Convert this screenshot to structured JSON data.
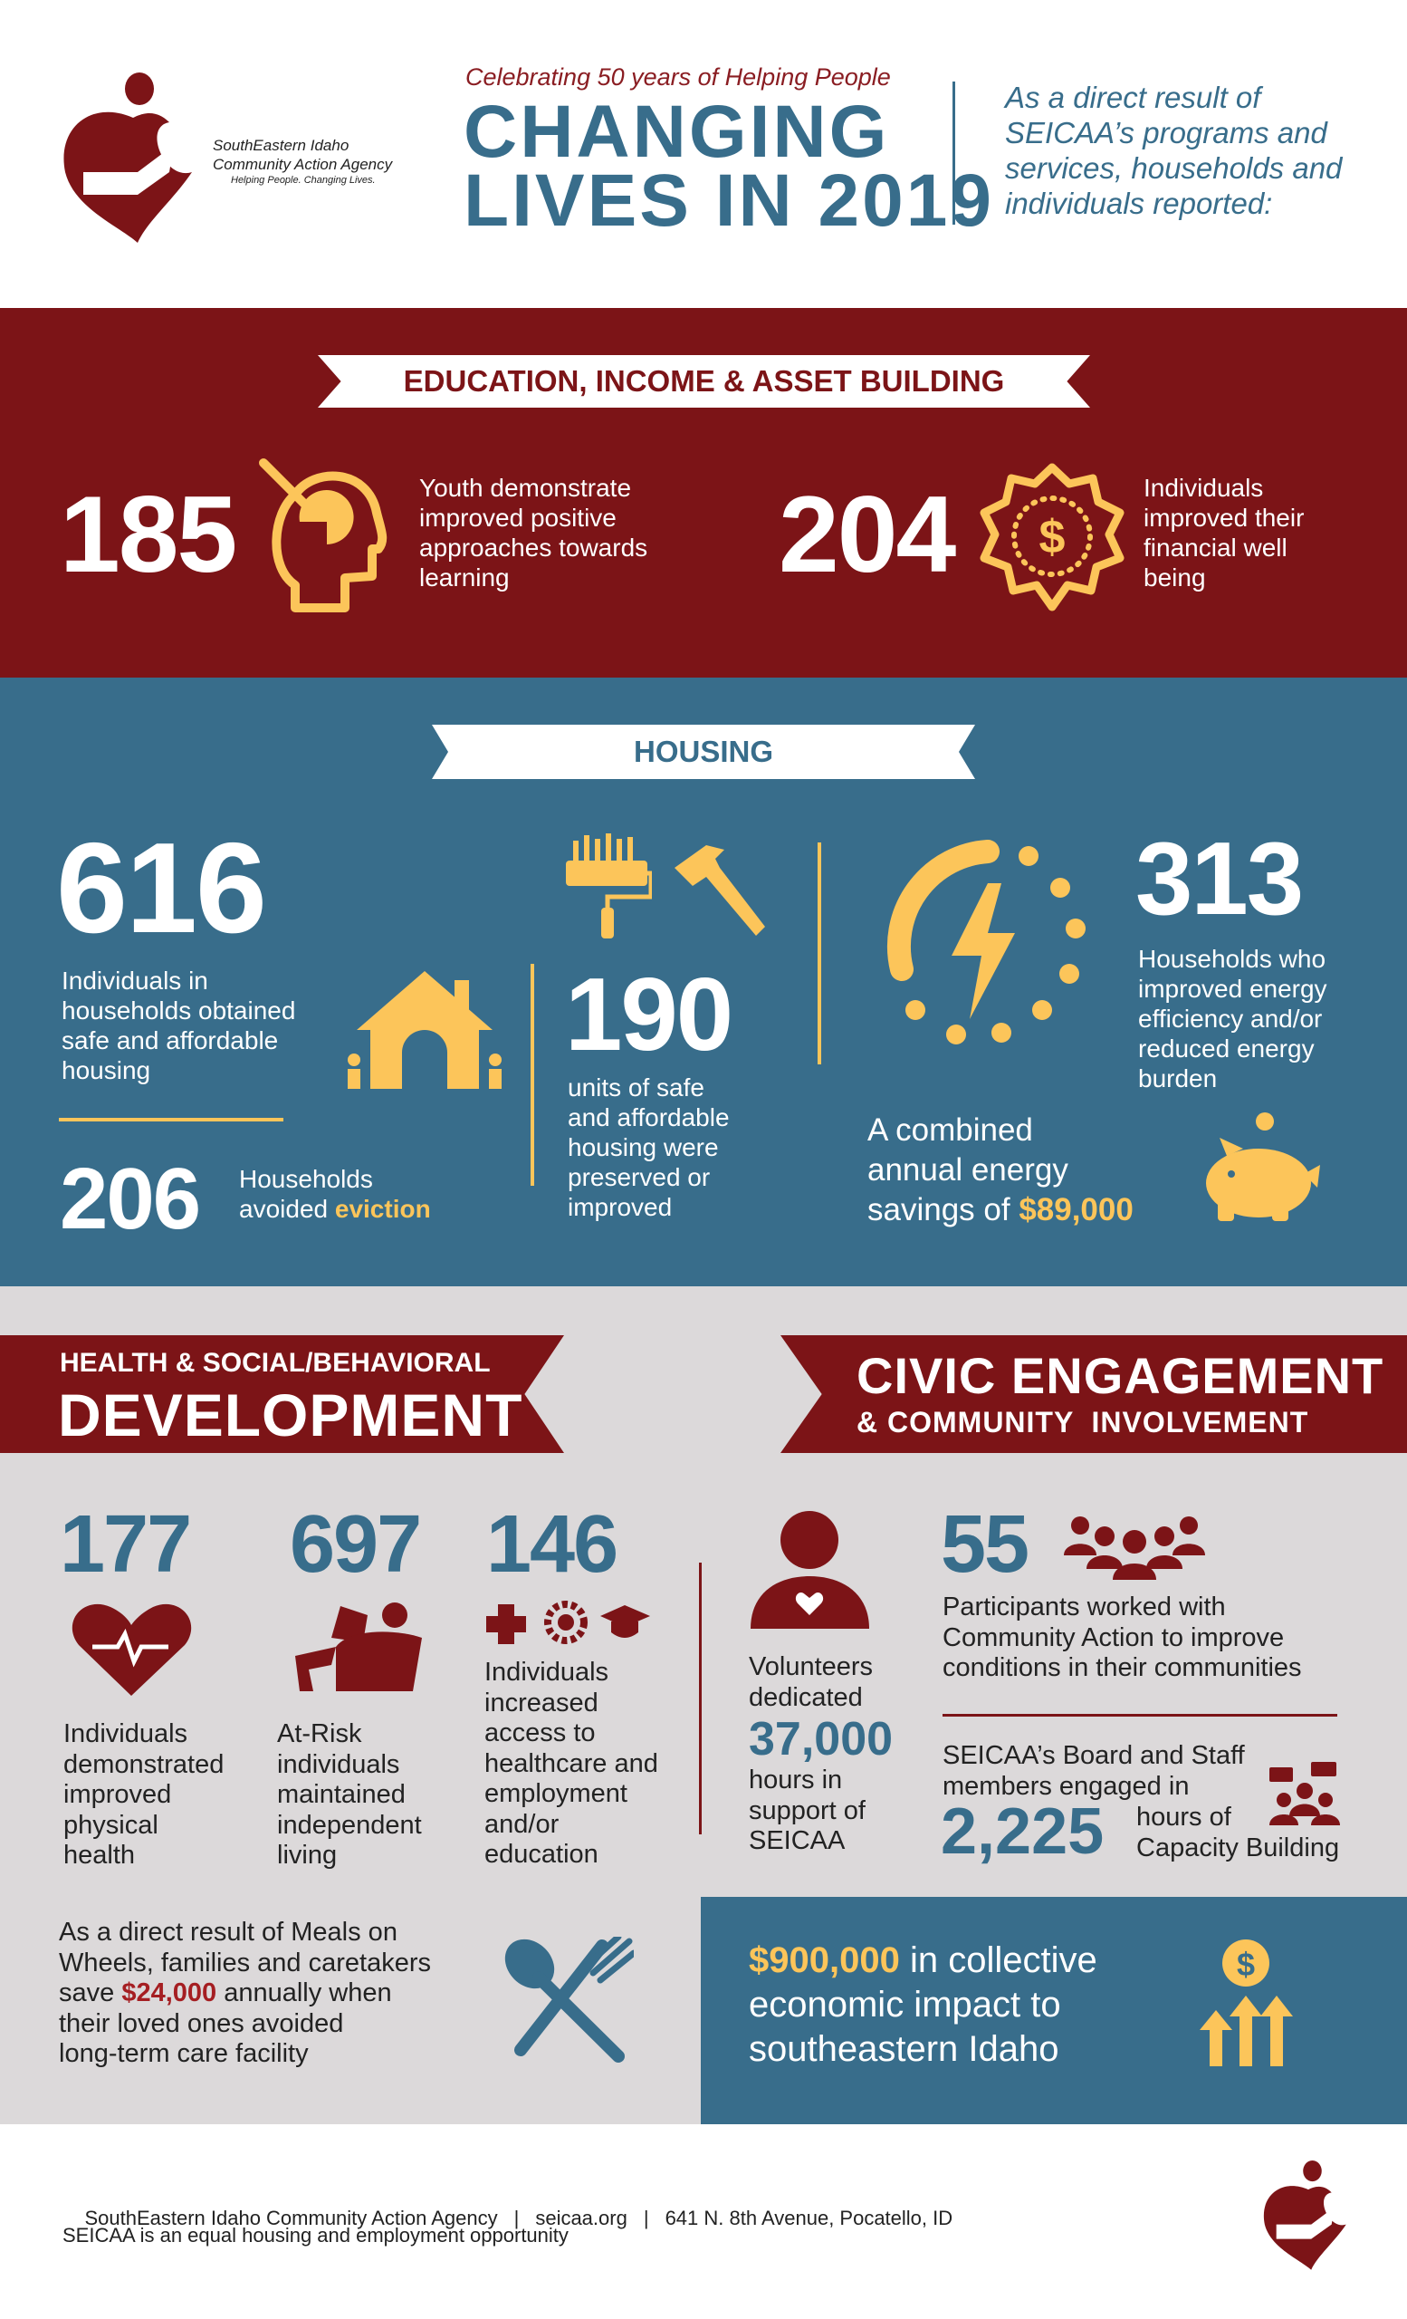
{
  "header": {
    "org_line1": "SouthEastern Idaho",
    "org_line2": "Community Action Agency",
    "org_tagline": "Helping People. Changing Lives.",
    "kicker": "Celebrating 50 years of Helping People",
    "title_line1": "CHANGING",
    "title_line2": "LIVES IN 2019",
    "intro": [
      "As a direct result of",
      "SEICAA’s programs and",
      "services, households and",
      "individuals reported:"
    ]
  },
  "education": {
    "banner": "EDUCATION, INCOME & ASSET BUILDING",
    "stat1": {
      "value": "185",
      "text": [
        "Youth demonstrate",
        "improved positive",
        "approaches towards",
        "learning"
      ],
      "icon": "head-learning-icon"
    },
    "stat2": {
      "value": "204",
      "text": [
        "Individuals",
        "improved their",
        "financial well",
        "being"
      ],
      "icon": "dollar-badge-icon"
    }
  },
  "housing": {
    "banner": "HOUSING",
    "stat616": {
      "value": "616",
      "text": [
        "Individuals in",
        "households obtained",
        "safe and affordable",
        "housing"
      ]
    },
    "stat206": {
      "value": "206",
      "text_a": "Households",
      "text_b": "avoided ",
      "highlight": "eviction"
    },
    "stat190": {
      "value": "190",
      "text": [
        "units of safe",
        "and affordable",
        "housing were",
        "preserved or",
        "improved"
      ]
    },
    "stat313": {
      "value": "313",
      "text": [
        "Households who",
        "improved energy",
        "efficiency and/or",
        "reduced energy",
        "burden"
      ]
    },
    "savings": {
      "line1": "A combined",
      "line2": "annual energy",
      "line3": "savings of ",
      "amount": "$89,000"
    }
  },
  "health": {
    "banner_small": "HEALTH & SOCIAL/BEHAVIORAL",
    "banner_big": "DEVELOPMENT",
    "stats": [
      {
        "value": "177",
        "text": [
          "Individuals",
          "demonstrated",
          "improved",
          "physical",
          "health"
        ]
      },
      {
        "value": "697",
        "text": [
          "At-Risk",
          "individuals",
          "maintained",
          "independent",
          "living"
        ]
      },
      {
        "value": "146",
        "text": [
          "Individuals",
          "increased",
          "access to",
          "healthcare and",
          "employment",
          "and/or",
          "education"
        ]
      }
    ],
    "meals": {
      "l1": "As a direct result of Meals on",
      "l2": "Wheels, families and caretakers",
      "l3a": "save ",
      "amount": "$24,000",
      "l3b": " annually when",
      "l4": "their loved ones avoided",
      "l5": "long-term care facility"
    }
  },
  "civic": {
    "banner_big": "CIVIC ENGAGEMENT",
    "banner_small": "& COMMUNITY  INVOLVEMENT",
    "volunteers": {
      "l1": "Volunteers",
      "l2": "dedicated",
      "value": "37,000",
      "l3": "hours in",
      "l4": "support of",
      "l5": "SEICAA"
    },
    "participants": {
      "value": "55",
      "text": [
        "Participants worked with",
        "Community Action to improve",
        "conditions in their communities"
      ]
    },
    "board": {
      "l1": "SEICAA’s Board and Staff",
      "l2": "members engaged in",
      "value": "2,225",
      "l3": "hours of",
      "l4": "Capacity Building"
    },
    "impact": {
      "amount": "$900,000",
      "l1": " in collective",
      "l2": "economic impact to",
      "l3": "southeastern Idaho"
    }
  },
  "footer": {
    "org": "SouthEastern Idaho Community Action Agency",
    "sep": "|",
    "website": "seicaa.org",
    "address": "641 N. 8th Avenue, Pocatello, ID",
    "notice": "SEICAA is an equal housing and employment opportunity"
  },
  "colors": {
    "red": "#7c1417",
    "blue": "#386d8b",
    "gold": "#fcc55a",
    "gray": "#dcd9da"
  }
}
